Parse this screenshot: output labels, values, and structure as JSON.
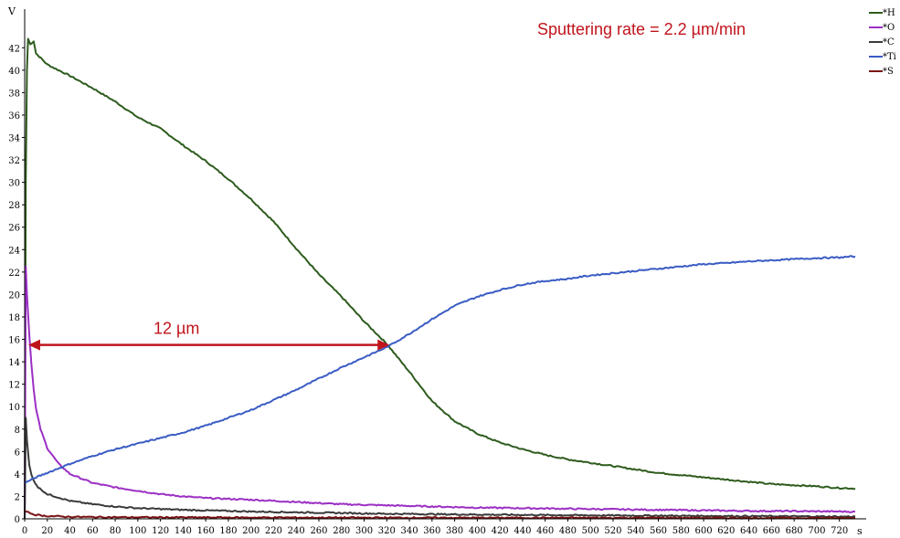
{
  "chart_data": {
    "type": "line",
    "xlabel": "s",
    "ylabel": "V",
    "xlim": [
      0,
      734
    ],
    "ylim": [
      0,
      43
    ],
    "x_ticks": [
      0,
      20,
      40,
      60,
      80,
      100,
      120,
      140,
      160,
      180,
      200,
      220,
      240,
      260,
      280,
      300,
      320,
      340,
      360,
      380,
      400,
      420,
      440,
      460,
      480,
      500,
      520,
      540,
      560,
      580,
      600,
      620,
      640,
      660,
      680,
      700,
      720
    ],
    "y_ticks": [
      0,
      2,
      4,
      6,
      8,
      10,
      12,
      14,
      16,
      18,
      20,
      22,
      24,
      26,
      28,
      30,
      32,
      34,
      36,
      38,
      40,
      42
    ],
    "grid": false,
    "legend_position": "top-right",
    "series": [
      {
        "name": "*H",
        "color": "#2e5c1e",
        "points": [
          [
            0,
            0
          ],
          [
            1,
            30
          ],
          [
            2,
            40
          ],
          [
            3,
            42.8
          ],
          [
            5,
            42.3
          ],
          [
            8,
            42.6
          ],
          [
            10,
            41.5
          ],
          [
            20,
            40.5
          ],
          [
            40,
            39.5
          ],
          [
            60,
            38.4
          ],
          [
            80,
            37.2
          ],
          [
            100,
            35.8
          ],
          [
            120,
            34.8
          ],
          [
            140,
            33.3
          ],
          [
            160,
            31.9
          ],
          [
            180,
            30.3
          ],
          [
            200,
            28.5
          ],
          [
            220,
            26.5
          ],
          [
            240,
            24.1
          ],
          [
            260,
            21.8
          ],
          [
            280,
            19.8
          ],
          [
            300,
            17.6
          ],
          [
            320,
            15.6
          ],
          [
            340,
            13.1
          ],
          [
            360,
            10.5
          ],
          [
            380,
            8.7
          ],
          [
            400,
            7.6
          ],
          [
            420,
            6.8
          ],
          [
            440,
            6.2
          ],
          [
            460,
            5.7
          ],
          [
            480,
            5.3
          ],
          [
            500,
            5.0
          ],
          [
            520,
            4.7
          ],
          [
            540,
            4.4
          ],
          [
            560,
            4.1
          ],
          [
            580,
            3.9
          ],
          [
            600,
            3.7
          ],
          [
            620,
            3.5
          ],
          [
            640,
            3.3
          ],
          [
            660,
            3.1
          ],
          [
            680,
            3.0
          ],
          [
            700,
            2.9
          ],
          [
            720,
            2.75
          ],
          [
            734,
            2.7
          ]
        ]
      },
      {
        "name": "*O",
        "color": "#9b2fc4",
        "points": [
          [
            0,
            0
          ],
          [
            1,
            22.5
          ],
          [
            2,
            20
          ],
          [
            4,
            16.5
          ],
          [
            6,
            13.8
          ],
          [
            8,
            11.5
          ],
          [
            10,
            9.8
          ],
          [
            14,
            8
          ],
          [
            20,
            6.3
          ],
          [
            30,
            4.9
          ],
          [
            40,
            4.0
          ],
          [
            60,
            3.2
          ],
          [
            80,
            2.8
          ],
          [
            100,
            2.5
          ],
          [
            120,
            2.2
          ],
          [
            140,
            2.0
          ],
          [
            160,
            1.85
          ],
          [
            200,
            1.7
          ],
          [
            240,
            1.5
          ],
          [
            280,
            1.3
          ],
          [
            320,
            1.2
          ],
          [
            360,
            1.1
          ],
          [
            400,
            1.0
          ],
          [
            440,
            0.95
          ],
          [
            480,
            0.9
          ],
          [
            520,
            0.85
          ],
          [
            560,
            0.8
          ],
          [
            600,
            0.75
          ],
          [
            640,
            0.7
          ],
          [
            680,
            0.68
          ],
          [
            720,
            0.65
          ],
          [
            734,
            0.63
          ]
        ]
      },
      {
        "name": "*C",
        "color": "#3a3a3a",
        "points": [
          [
            0,
            0
          ],
          [
            1,
            9
          ],
          [
            2,
            7
          ],
          [
            4,
            4.8
          ],
          [
            6,
            3.9
          ],
          [
            8,
            3.4
          ],
          [
            12,
            2.8
          ],
          [
            20,
            2.2
          ],
          [
            30,
            1.9
          ],
          [
            40,
            1.6
          ],
          [
            60,
            1.3
          ],
          [
            80,
            1.1
          ],
          [
            100,
            0.95
          ],
          [
            140,
            0.8
          ],
          [
            200,
            0.65
          ],
          [
            260,
            0.55
          ],
          [
            320,
            0.45
          ],
          [
            400,
            0.38
          ],
          [
            480,
            0.32
          ],
          [
            560,
            0.28
          ],
          [
            640,
            0.24
          ],
          [
            720,
            0.2
          ],
          [
            734,
            0.2
          ]
        ]
      },
      {
        "name": "*Ti",
        "color": "#3a5cc4",
        "points": [
          [
            0,
            3.2
          ],
          [
            10,
            3.7
          ],
          [
            20,
            4.1
          ],
          [
            40,
            4.9
          ],
          [
            60,
            5.6
          ],
          [
            80,
            6.2
          ],
          [
            100,
            6.7
          ],
          [
            120,
            7.2
          ],
          [
            140,
            7.7
          ],
          [
            160,
            8.3
          ],
          [
            180,
            9.0
          ],
          [
            200,
            9.7
          ],
          [
            220,
            10.6
          ],
          [
            240,
            11.5
          ],
          [
            260,
            12.5
          ],
          [
            280,
            13.5
          ],
          [
            300,
            14.4
          ],
          [
            320,
            15.3
          ],
          [
            340,
            16.5
          ],
          [
            360,
            17.8
          ],
          [
            380,
            19.0
          ],
          [
            400,
            19.8
          ],
          [
            420,
            20.4
          ],
          [
            440,
            20.9
          ],
          [
            460,
            21.2
          ],
          [
            480,
            21.4
          ],
          [
            500,
            21.7
          ],
          [
            520,
            21.9
          ],
          [
            540,
            22.1
          ],
          [
            560,
            22.3
          ],
          [
            580,
            22.5
          ],
          [
            600,
            22.7
          ],
          [
            620,
            22.8
          ],
          [
            640,
            22.95
          ],
          [
            660,
            23.05
          ],
          [
            680,
            23.15
          ],
          [
            700,
            23.25
          ],
          [
            720,
            23.3
          ],
          [
            734,
            23.4
          ]
        ]
      },
      {
        "name": "*S",
        "color": "#7a1414",
        "points": [
          [
            0,
            0.7
          ],
          [
            5,
            0.5
          ],
          [
            10,
            0.35
          ],
          [
            20,
            0.25
          ],
          [
            40,
            0.18
          ],
          [
            80,
            0.14
          ],
          [
            160,
            0.12
          ],
          [
            320,
            0.1
          ],
          [
            480,
            0.09
          ],
          [
            640,
            0.08
          ],
          [
            734,
            0.08
          ]
        ]
      }
    ],
    "annotations": [
      {
        "text": "Sputtering rate = 2.2 µm/min",
        "color": "#c0141c"
      },
      {
        "text": "12 µm",
        "color": "#c0141c",
        "arrow_from_x": 0,
        "arrow_to_x": 324,
        "arrow_y": 15.5
      }
    ]
  }
}
